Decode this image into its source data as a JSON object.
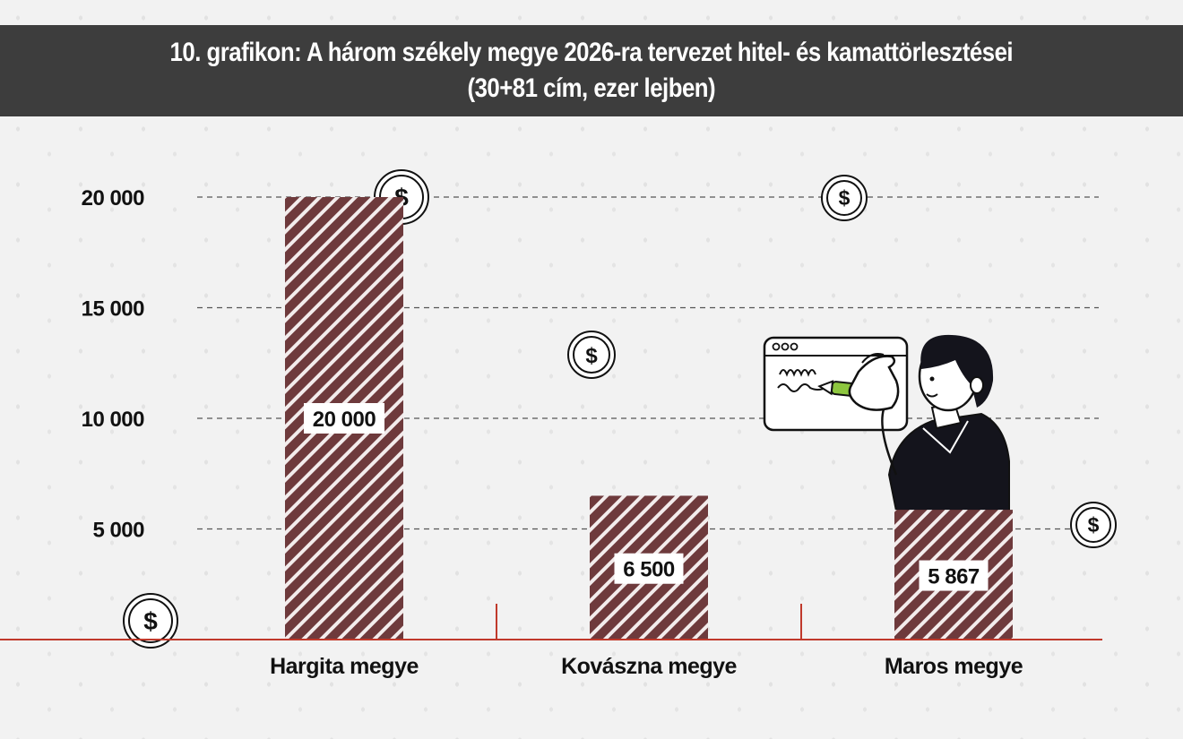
{
  "title": {
    "line1": "10. grafikon: A három székely megye 2026-ra tervezet hitel- és kamattörlesztései",
    "line2": "(30+81 cím, ezer lejben)"
  },
  "colors": {
    "bar": "#6e3a3c",
    "bar_stripe": "#f3ecec",
    "axis": "#c0392b",
    "grid": "#555555",
    "title_bg": "#3d3d3d",
    "pencil": "#8dc63f"
  },
  "icons": [
    "dollar-coin-icon",
    "person-writing-illustration"
  ],
  "chart_data": {
    "type": "bar",
    "title": "10. grafikon: A három székely megye 2026-ra tervezet hitel- és kamattörlesztései (30+81 cím, ezer lejben)",
    "categories": [
      "Hargita megye",
      "Kovászna megye",
      "Maros megye"
    ],
    "values": [
      20000,
      6500,
      5867
    ],
    "value_labels": [
      "20 000",
      "6 500",
      "5 867"
    ],
    "yticks": [
      5000,
      10000,
      15000,
      20000
    ],
    "ytick_labels": [
      "5 000",
      "10 000",
      "15 000",
      "20 000"
    ],
    "ylim": [
      0,
      20000
    ],
    "xlabel": "",
    "ylabel": "",
    "grid": true,
    "grid_style": "dashed",
    "legend": "none"
  }
}
